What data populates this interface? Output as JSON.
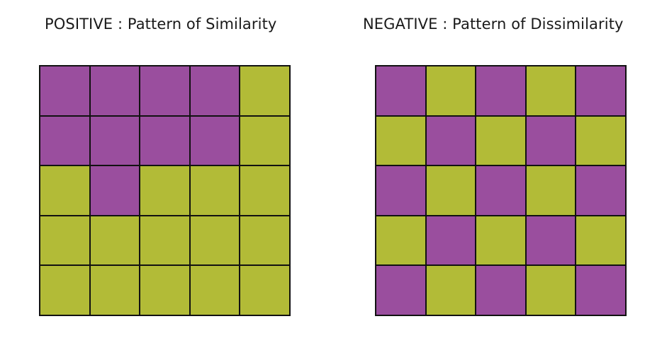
{
  "colors": {
    "purple": "#9a4e9e",
    "green": "#b2bb37",
    "border": "#111111"
  },
  "panels": [
    {
      "title": "POSITIVE :  Pattern of Similarity",
      "grid": [
        [
          "purple",
          "purple",
          "purple",
          "purple",
          "green"
        ],
        [
          "purple",
          "purple",
          "purple",
          "purple",
          "green"
        ],
        [
          "green",
          "purple",
          "green",
          "green",
          "green"
        ],
        [
          "green",
          "green",
          "green",
          "green",
          "green"
        ],
        [
          "green",
          "green",
          "green",
          "green",
          "green"
        ]
      ]
    },
    {
      "title": "NEGATIVE :  Pattern of Dissimilarity",
      "grid": [
        [
          "purple",
          "green",
          "purple",
          "green",
          "purple"
        ],
        [
          "green",
          "purple",
          "green",
          "purple",
          "green"
        ],
        [
          "purple",
          "green",
          "purple",
          "green",
          "purple"
        ],
        [
          "green",
          "purple",
          "green",
          "purple",
          "green"
        ],
        [
          "purple",
          "green",
          "purple",
          "green",
          "purple"
        ]
      ]
    }
  ]
}
